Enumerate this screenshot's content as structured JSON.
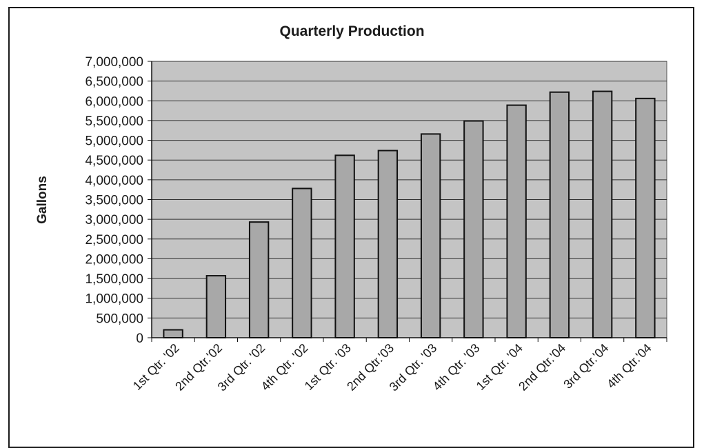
{
  "chart_data": {
    "type": "bar",
    "title": "Quarterly Production",
    "xlabel": "",
    "ylabel": "Gallons",
    "categories": [
      "1st Qtr. '02",
      "2nd Qtr.'02",
      "3rd Qtr. '02",
      "4th Qtr. '02",
      "1st Qtr. '03",
      "2nd Qtr.'03",
      "3rd Qtr. '03",
      "4th Qtr. '03",
      "1st Qtr. '04",
      "2nd Qtr.'04",
      "3rd Qtr.'04",
      "4th Qtr.'04"
    ],
    "values": [
      200000,
      1570000,
      2930000,
      3780000,
      4620000,
      4740000,
      5160000,
      5490000,
      5890000,
      6220000,
      6240000,
      6060000
    ],
    "yticks": [
      "0",
      "500,000",
      "1,000,000",
      "1,500,000",
      "2,000,000",
      "2,500,000",
      "3,000,000",
      "3,500,000",
      "4,000,000",
      "4,500,000",
      "5,000,000",
      "5,500,000",
      "6,000,000",
      "6,500,000",
      "7,000,000"
    ],
    "ylim": [
      0,
      7000000
    ],
    "grid": true,
    "legend": "none",
    "colors": {
      "plot_bg": "#c4c4c4",
      "bar_fill": "#a8a8a8",
      "bar_stroke": "#111111",
      "grid": "#333333"
    }
  }
}
